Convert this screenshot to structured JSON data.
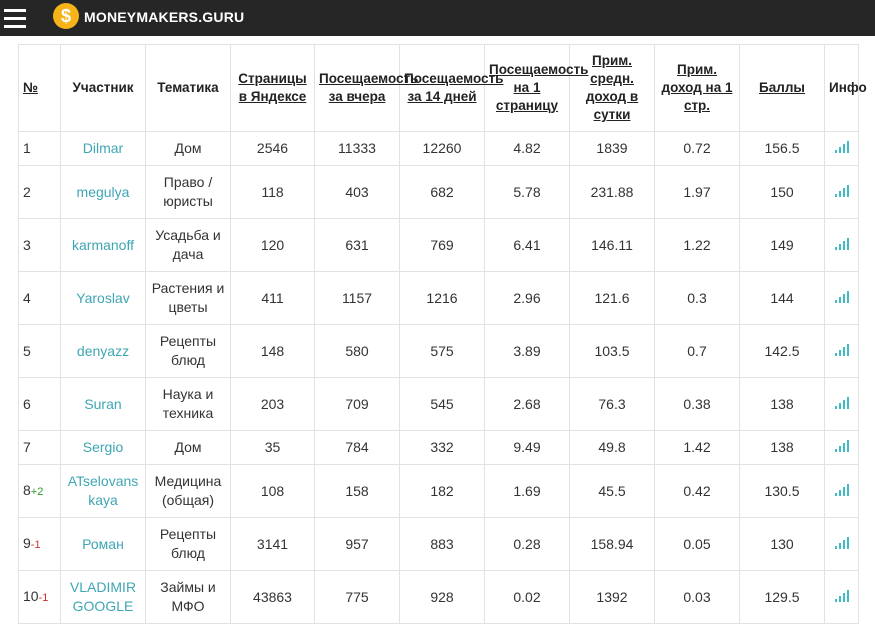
{
  "header": {
    "logo_icon": "$",
    "logo": "MONEYMAKERS.GURU"
  },
  "table": {
    "columns": [
      "№",
      "Участник",
      "Тематика",
      "Страницы в Яндексе",
      "Посещаемость за вчера",
      "Посещаемость за 14 дней",
      "Посещаемость на 1 страницу",
      "Прим. средн. доход в сутки",
      "Прим. доход на 1 стр.",
      "Баллы",
      "Инфо"
    ],
    "rows": [
      {
        "rank": "1",
        "name": "Dilmar",
        "topic": "Дом",
        "values": [
          "2546",
          "11333",
          "12260",
          "4.82",
          "1839",
          "0.72",
          "156.5"
        ]
      },
      {
        "rank": "2",
        "name": "megulya",
        "topic": "Право / юристы",
        "values": [
          "118",
          "403",
          "682",
          "5.78",
          "231.88",
          "1.97",
          "150"
        ]
      },
      {
        "rank": "3",
        "name": "karmanoff",
        "topic": "Усадьба и дача",
        "values": [
          "120",
          "631",
          "769",
          "6.41",
          "146.11",
          "1.22",
          "149"
        ]
      },
      {
        "rank": "4",
        "name": "Yaroslav",
        "topic": "Растения и цветы",
        "values": [
          "411",
          "1157",
          "1216",
          "2.96",
          "121.6",
          "0.3",
          "144"
        ]
      },
      {
        "rank": "5",
        "name": "denyazz",
        "topic": "Рецепты блюд",
        "values": [
          "148",
          "580",
          "575",
          "3.89",
          "103.5",
          "0.7",
          "142.5"
        ]
      },
      {
        "rank": "6",
        "name": "Suran",
        "topic": "Наука и техника",
        "values": [
          "203",
          "709",
          "545",
          "2.68",
          "76.3",
          "0.38",
          "138"
        ]
      },
      {
        "rank": "7",
        "name": "Sergio",
        "topic": "Дом",
        "values": [
          "35",
          "784",
          "332",
          "9.49",
          "49.8",
          "1.42",
          "138"
        ]
      },
      {
        "rank": "8",
        "change": "+2",
        "name": "ATselovanskaya",
        "topic": "Медицина (общая)",
        "values": [
          "108",
          "158",
          "182",
          "1.69",
          "45.5",
          "0.42",
          "130.5"
        ]
      },
      {
        "rank": "9",
        "change": "-1",
        "name": "Роман",
        "topic": "Рецепты блюд",
        "values": [
          "3141",
          "957",
          "883",
          "0.28",
          "158.94",
          "0.05",
          "130"
        ]
      },
      {
        "rank": "10",
        "change": "-1",
        "name": "VLADIMIR GOOGLE",
        "topic": "Займы и МФО",
        "values": [
          "43863",
          "775",
          "928",
          "0.02",
          "1392",
          "0.03",
          "129.5"
        ]
      }
    ]
  }
}
